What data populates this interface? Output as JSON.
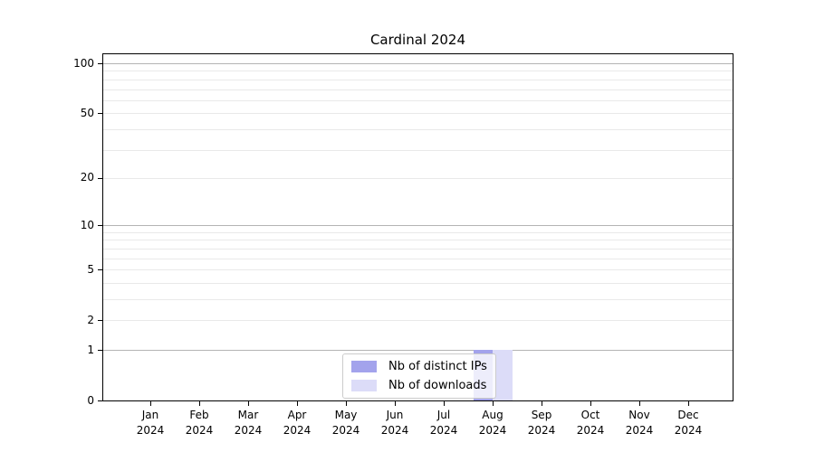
{
  "chart_data": {
    "type": "bar",
    "title": "Cardinal 2024",
    "categories": [
      "Jan",
      "Feb",
      "Mar",
      "Apr",
      "May",
      "Jun",
      "Jul",
      "Aug",
      "Sep",
      "Oct",
      "Nov",
      "Dec"
    ],
    "category_year": "2024",
    "series": [
      {
        "name": "Nb of distinct IPs",
        "color": "#a3a3ec",
        "values": [
          0,
          0,
          0,
          0,
          0,
          0,
          0,
          1,
          0,
          0,
          0,
          0
        ]
      },
      {
        "name": "Nb of downloads",
        "color": "#dcdcf8",
        "values": [
          0,
          0,
          0,
          0,
          0,
          0,
          0,
          1,
          0,
          0,
          0,
          0
        ]
      }
    ],
    "xlabel": "",
    "ylabel": "",
    "y_axis": {
      "scale": "log1p",
      "ylim": [
        0,
        115
      ],
      "tick_values": [
        0,
        1,
        2,
        5,
        10,
        20,
        50,
        100
      ],
      "major_grid_values": [
        1,
        10,
        100
      ],
      "minor_grid_values": [
        2,
        3,
        4,
        5,
        6,
        7,
        8,
        9,
        20,
        30,
        40,
        50,
        60,
        70,
        80,
        90
      ]
    },
    "grid": true,
    "legend_position": "lower-center",
    "colors": {
      "major_grid": "#b4b4b4",
      "minor_grid": "#e9e9e9",
      "spine": "#000000",
      "background": "#ffffff"
    }
  }
}
